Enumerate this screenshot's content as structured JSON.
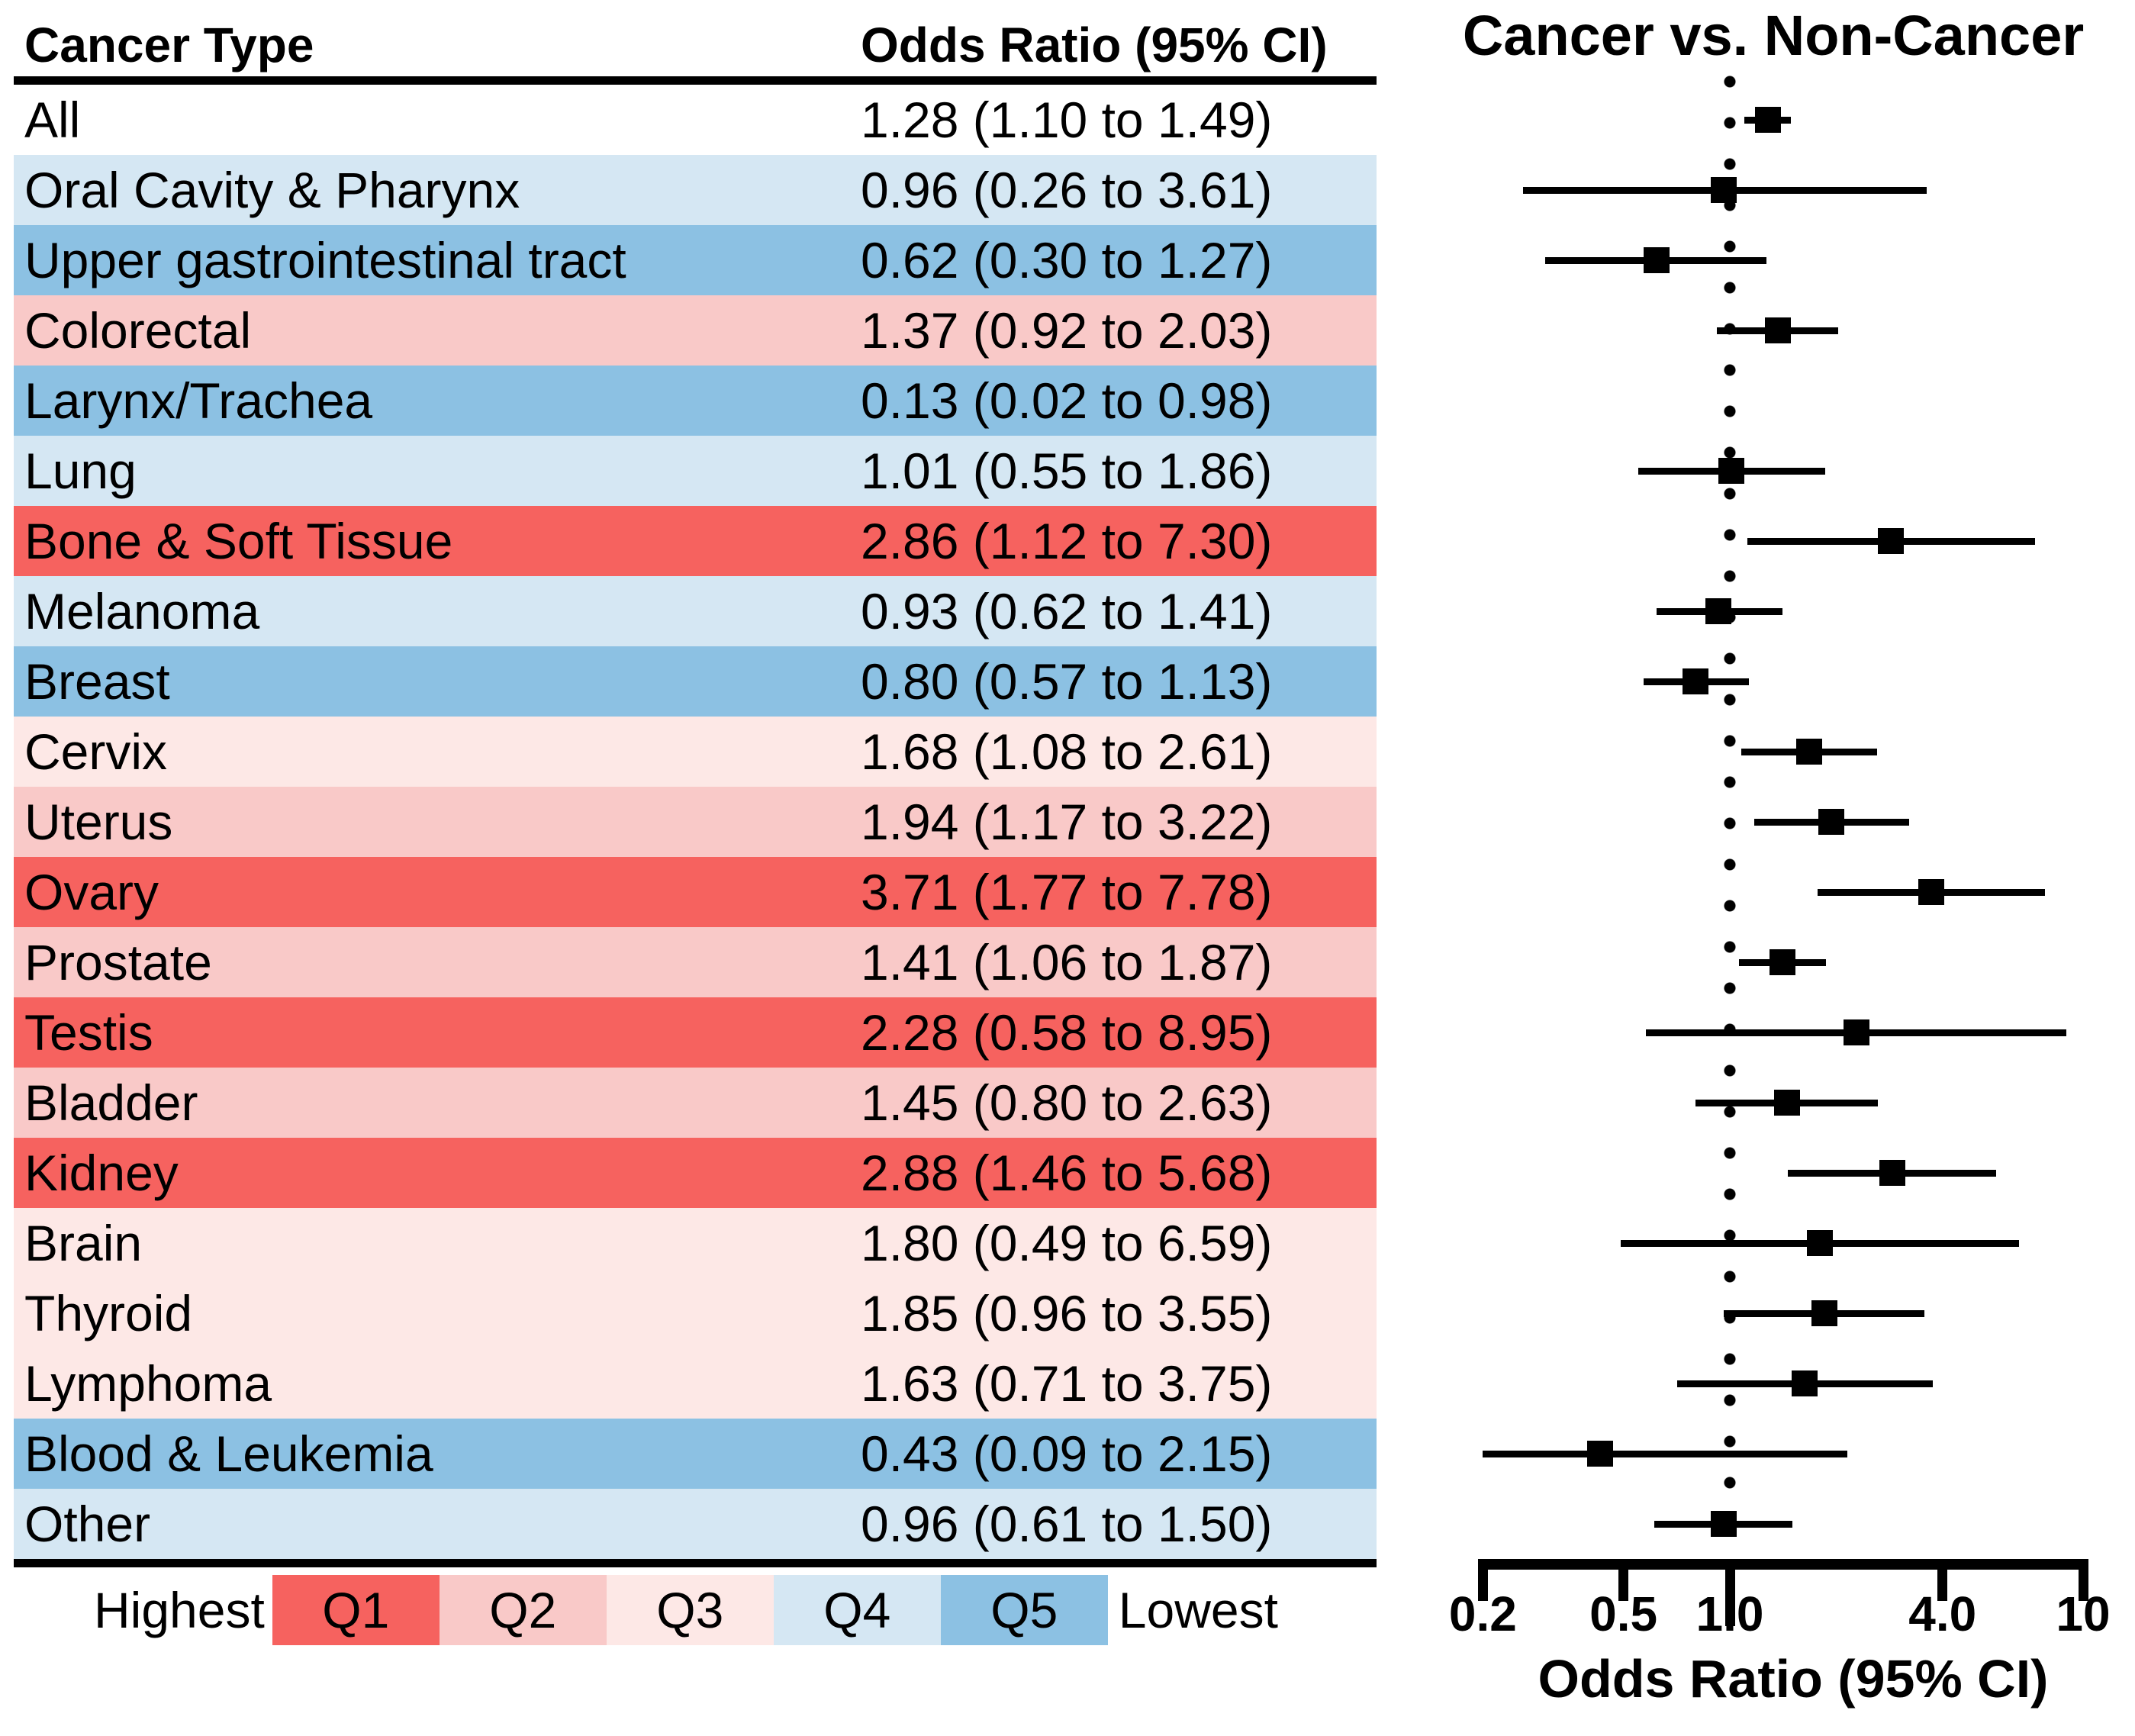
{
  "table": {
    "header_cancer": "Cancer Type",
    "header_or": "Odds Ratio (95% CI)"
  },
  "legend": {
    "highest": "Highest",
    "lowest": "Lowest",
    "quintiles": [
      {
        "label": "Q1",
        "color": "#F6625F"
      },
      {
        "label": "Q2",
        "color": "#F9C9C8"
      },
      {
        "label": "Q3",
        "color": "#FDE8E6"
      },
      {
        "label": "Q4",
        "color": "#D5E7F3"
      },
      {
        "label": "Q5",
        "color": "#8CC1E3"
      }
    ]
  },
  "colors": {
    "none": "#FFFFFF",
    "Q1": "#F6625F",
    "Q2": "#F9C9C8",
    "Q3": "#FDE8E6",
    "Q4": "#D5E7F3",
    "Q5": "#8CC1E3",
    "marker": "#000000"
  },
  "forest": {
    "title": "Cancer vs. Non-Cancer",
    "xlabel": "Odds Ratio (95% CI)",
    "ticks": [
      {
        "label": "0.2",
        "value": 0.2,
        "long": false
      },
      {
        "label": "0.5",
        "value": 0.5,
        "long": false
      },
      {
        "label": "1.0",
        "value": 1.0,
        "long": true
      },
      {
        "label": "4.0",
        "value": 4.0,
        "long": false
      },
      {
        "label": "10",
        "value": 10,
        "long": false
      }
    ]
  },
  "chart_data": {
    "type": "forest",
    "title": "Cancer vs. Non-Cancer",
    "xlabel": "Odds Ratio (95% CI)",
    "x_scale": "log",
    "xlim": [
      0.2,
      10
    ],
    "x_ticks": [
      0.2,
      0.5,
      1.0,
      4.0,
      10
    ],
    "reference_line": 1.0,
    "quintile_note": "Row shading: Q1=highest odds ratio quintile (red) to Q5=lowest (blue)",
    "points": [
      {
        "label": "All",
        "or_text": "1.28 (1.10 to 1.49)",
        "or": 1.28,
        "lo": 1.1,
        "hi": 1.49,
        "quintile": "none"
      },
      {
        "label": "Oral Cavity & Pharynx",
        "or_text": "0.96 (0.26 to 3.61)",
        "or": 0.96,
        "lo": 0.26,
        "hi": 3.61,
        "quintile": "Q4"
      },
      {
        "label": "Upper gastrointestinal tract",
        "or_text": "0.62 (0.30 to 1.27)",
        "or": 0.62,
        "lo": 0.3,
        "hi": 1.27,
        "quintile": "Q5"
      },
      {
        "label": "Colorectal",
        "or_text": "1.37 (0.92 to 2.03)",
        "or": 1.37,
        "lo": 0.92,
        "hi": 2.03,
        "quintile": "Q2"
      },
      {
        "label": "Larynx/Trachea",
        "or_text": "0.13 (0.02 to 0.98)",
        "or": 0.13,
        "lo": 0.02,
        "hi": 0.98,
        "quintile": "Q5"
      },
      {
        "label": "Lung",
        "or_text": "1.01 (0.55 to 1.86)",
        "or": 1.01,
        "lo": 0.55,
        "hi": 1.86,
        "quintile": "Q4"
      },
      {
        "label": "Bone & Soft Tissue",
        "or_text": "2.86 (1.12 to 7.30)",
        "or": 2.86,
        "lo": 1.12,
        "hi": 7.3,
        "quintile": "Q1"
      },
      {
        "label": "Melanoma",
        "or_text": "0.93 (0.62 to 1.41)",
        "or": 0.93,
        "lo": 0.62,
        "hi": 1.41,
        "quintile": "Q4"
      },
      {
        "label": "Breast",
        "or_text": "0.80 (0.57 to 1.13)",
        "or": 0.8,
        "lo": 0.57,
        "hi": 1.13,
        "quintile": "Q5"
      },
      {
        "label": "Cervix",
        "or_text": "1.68 (1.08 to 2.61)",
        "or": 1.68,
        "lo": 1.08,
        "hi": 2.61,
        "quintile": "Q3"
      },
      {
        "label": "Uterus",
        "or_text": "1.94 (1.17 to 3.22)",
        "or": 1.94,
        "lo": 1.17,
        "hi": 3.22,
        "quintile": "Q2"
      },
      {
        "label": "Ovary",
        "or_text": "3.71 (1.77 to 7.78)",
        "or": 3.71,
        "lo": 1.77,
        "hi": 7.78,
        "quintile": "Q1"
      },
      {
        "label": "Prostate",
        "or_text": "1.41 (1.06 to 1.87)",
        "or": 1.41,
        "lo": 1.06,
        "hi": 1.87,
        "quintile": "Q2"
      },
      {
        "label": "Testis",
        "or_text": "2.28 (0.58 to 8.95)",
        "or": 2.28,
        "lo": 0.58,
        "hi": 8.95,
        "quintile": "Q1"
      },
      {
        "label": "Bladder",
        "or_text": "1.45 (0.80 to 2.63)",
        "or": 1.45,
        "lo": 0.8,
        "hi": 2.63,
        "quintile": "Q2"
      },
      {
        "label": "Kidney",
        "or_text": "2.88 (1.46 to 5.68)",
        "or": 2.88,
        "lo": 1.46,
        "hi": 5.68,
        "quintile": "Q1"
      },
      {
        "label": "Brain",
        "or_text": "1.80 (0.49 to 6.59)",
        "or": 1.8,
        "lo": 0.49,
        "hi": 6.59,
        "quintile": "Q3"
      },
      {
        "label": "Thyroid",
        "or_text": "1.85 (0.96 to 3.55)",
        "or": 1.85,
        "lo": 0.96,
        "hi": 3.55,
        "quintile": "Q3"
      },
      {
        "label": "Lymphoma",
        "or_text": "1.63 (0.71 to 3.75)",
        "or": 1.63,
        "lo": 0.71,
        "hi": 3.75,
        "quintile": "Q3"
      },
      {
        "label": "Blood & Leukemia",
        "or_text": "0.43 (0.09 to 2.15)",
        "or": 0.43,
        "lo": 0.09,
        "hi": 2.15,
        "quintile": "Q5"
      },
      {
        "label": "Other",
        "or_text": "0.96 (0.61 to 1.50)",
        "or": 0.96,
        "lo": 0.61,
        "hi": 1.5,
        "quintile": "Q4"
      }
    ]
  }
}
